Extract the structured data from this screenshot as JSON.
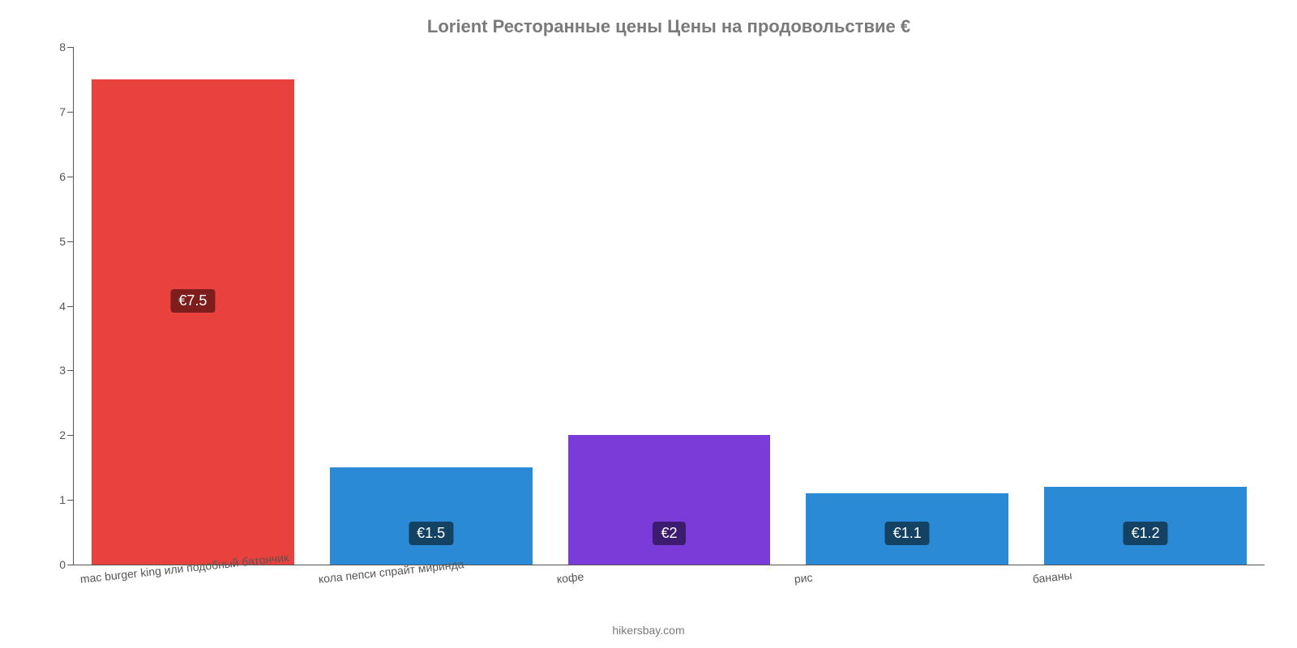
{
  "chart": {
    "type": "bar",
    "title": "Lorient Ресторанные цены Цены на продовольствие €",
    "title_color": "#7a7a7a",
    "title_fontsize": 22,
    "background_color": "#ffffff",
    "axis_color": "#555555",
    "label_color": "#555555",
    "label_fontsize": 14,
    "ylim": [
      0,
      8
    ],
    "ytick_step": 1,
    "y_ticks": [
      "0",
      "1",
      "2",
      "3",
      "4",
      "5",
      "6",
      "7",
      "8"
    ],
    "bar_width_ratio": 0.85,
    "categories": [
      "mac burger king или подобный батончик",
      "кола пепси спрайт миринда",
      "кофе",
      "рис",
      "бананы"
    ],
    "values": [
      7.5,
      1.5,
      2,
      1.1,
      1.2
    ],
    "value_labels": [
      "€7.5",
      "€1.5",
      "€2",
      "€1.1",
      "€1.2"
    ],
    "bar_colors": [
      "#e9413d",
      "#2b8ad6",
      "#7a3bd8",
      "#2b8ad6",
      "#2b8ad6"
    ],
    "badge_colors": [
      "#7e1e1c",
      "#134263",
      "#3d1b6f",
      "#134263",
      "#134263"
    ],
    "badge_text_color": "#ffffff",
    "x_label_rotation_deg": -6,
    "attribution": "hikersbay.com"
  }
}
